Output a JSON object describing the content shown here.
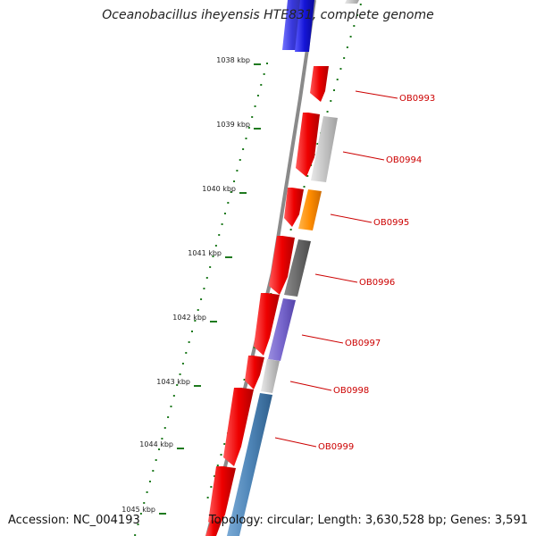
{
  "title": "Oceanobacillus iheyensis HTE831, complete genome",
  "accession_text": "Accession: NC_004193",
  "topology_text": "Topology: circular; Length: 3,630,528 bp; Genes: 3,591",
  "kbp_labels": [
    "1038 kbp",
    "1039 kbp",
    "1040 kbp",
    "1041 kbp",
    "1042 kbp",
    "1043 kbp",
    "1044 kbp",
    "1045 kbp"
  ],
  "gene_labels": [
    "OB0993",
    "OB0994",
    "OB0995",
    "OB0996",
    "OB0997",
    "OB0998",
    "OB0999"
  ],
  "colors": {
    "backbone": "#8a8a8a",
    "forward_gene": "#ee0000",
    "tick_green": "#1f7a1f",
    "label_red": "#cc0000",
    "blue_block": "#1515d6",
    "light_gray": "#c4c4c4",
    "orange": "#ff8c00",
    "dark_gray": "#6a6a6a",
    "purple": "#7766cc",
    "steel_blue": "#4f86b8"
  }
}
